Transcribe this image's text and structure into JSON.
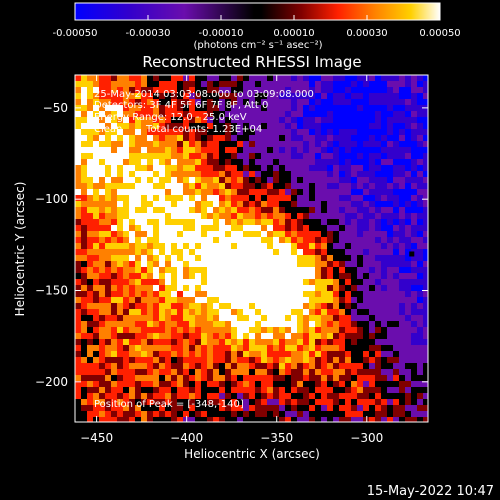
{
  "colorbar": {
    "ticks": [
      "-0.00050",
      "-0.00030",
      "-0.00010",
      "0.00010",
      "0.00030",
      "0.00050"
    ],
    "tick_values": [
      -0.0005,
      -0.0003,
      -0.0001,
      0.0001,
      0.0003,
      0.0005
    ],
    "range": [
      -0.0005,
      0.0005
    ],
    "units": "(photons cm⁻² s⁻¹ asec⁻²)"
  },
  "info": {
    "time_range": "25-May-2014 03:03:08.000 to 03:09:08.000",
    "detectors": "Detectors: 3F 4F 5F 6F 7F 8F, Att 0",
    "energy": "Energy Range: 12.0 - 25.0 keV",
    "method": "Clean",
    "total_counts": "Total counts: 1.23E+04",
    "peak": "Position of Peak = [-348,-140]"
  },
  "footer": {
    "timestamp": "15-May-2022 10:47"
  },
  "chart_data": {
    "type": "heatmap",
    "title": "Reconstructed RHESSI Image",
    "xlabel": "Heliocentric X (arcsec)",
    "ylabel": "Heliocentric Y (arcsec)",
    "xlim": [
      -462,
      -266
    ],
    "ylim": [
      -222,
      -32
    ],
    "x_ticks": [
      -450,
      -400,
      -350,
      -300
    ],
    "y_ticks": [
      -50,
      -100,
      -150,
      -200
    ],
    "x_tick_labels": [
      "−450",
      "−400",
      "−350",
      "−300"
    ],
    "y_tick_labels": [
      "−50",
      "−100",
      "−150",
      "−200"
    ],
    "peak": {
      "x": -348,
      "y": -140
    },
    "colormap": [
      "#0000ff",
      "#3300cc",
      "#6a0dad",
      "#000000",
      "#800000",
      "#ff2000",
      "#ff8000",
      "#ffd000",
      "#ffffff"
    ]
  }
}
